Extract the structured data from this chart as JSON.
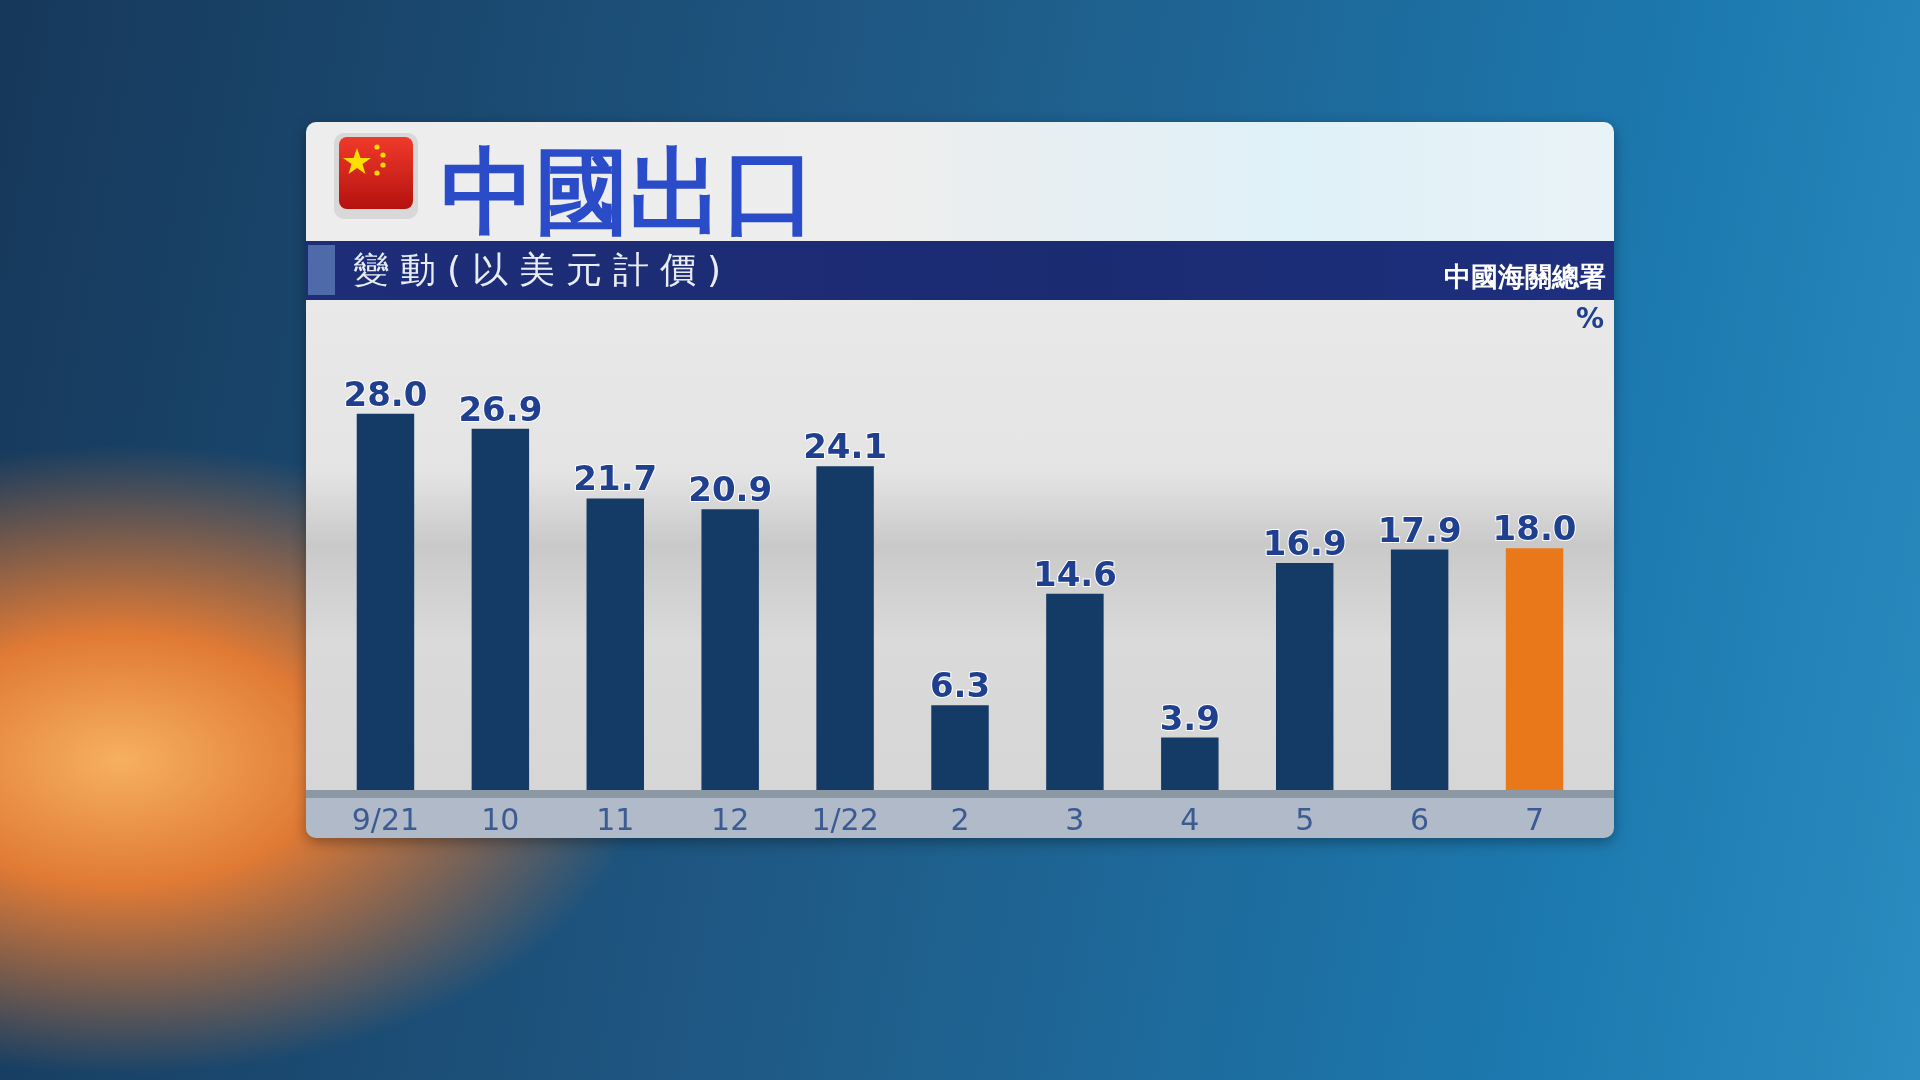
{
  "chart_data": {
    "type": "bar",
    "title": "中國出口",
    "subtitle": "變動(以美元計價)",
    "ylabel": "%",
    "annotations": [
      "中國海關總署"
    ],
    "categories": [
      "9/21",
      "10",
      "11",
      "12",
      "1/22",
      "2",
      "3",
      "4",
      "5",
      "6",
      "7"
    ],
    "values": [
      28.0,
      26.9,
      21.7,
      20.9,
      24.1,
      6.3,
      14.6,
      3.9,
      16.9,
      17.9,
      18.0
    ],
    "colors": [
      "#143a66",
      "#143a66",
      "#143a66",
      "#143a66",
      "#143a66",
      "#143a66",
      "#143a66",
      "#143a66",
      "#143a66",
      "#143a66",
      "#e8781a"
    ],
    "value_labels": [
      "28.0",
      "26.9",
      "21.7",
      "20.9",
      "24.1",
      "6.3",
      "14.6",
      "3.9",
      "16.9",
      "17.9",
      "18.0"
    ]
  }
}
